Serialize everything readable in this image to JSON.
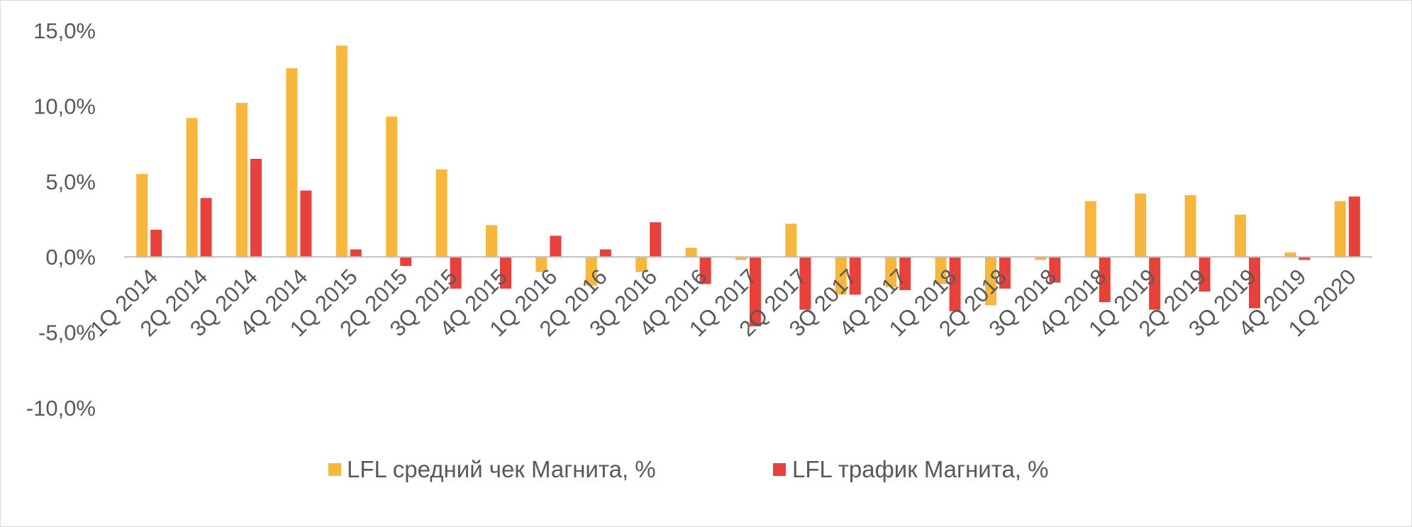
{
  "chart_data": {
    "type": "bar",
    "title": "",
    "xlabel": "",
    "ylabel": "",
    "ylim": [
      -10,
      15
    ],
    "y_ticks": [
      15,
      10,
      5,
      0,
      -5,
      -10
    ],
    "y_tick_labels": [
      "15,0%",
      "10,0%",
      "5,0%",
      "0,0%",
      "-5,0%",
      "-10,0%"
    ],
    "grid": false,
    "legend_position": "bottom",
    "categories": [
      "1Q 2014",
      "2Q 2014",
      "3Q 2014",
      "4Q 2014",
      "1Q 2015",
      "2Q 2015",
      "3Q 2015",
      "4Q 2015",
      "1Q 2016",
      "2Q 2016",
      "3Q 2016",
      "4Q 2016",
      "1Q 2017",
      "2Q 2017",
      "3Q 2017",
      "4Q 2017",
      "1Q 2018",
      "2Q 2018",
      "3Q 2018",
      "4Q 2018",
      "1Q 2019",
      "2Q 2019",
      "3Q 2019",
      "4Q 2019",
      "1Q 2020"
    ],
    "series": [
      {
        "name": "LFL средний чек Магнита, %",
        "color": "#f6b73c",
        "values": [
          5.5,
          9.2,
          10.2,
          12.5,
          14.0,
          9.3,
          5.8,
          2.1,
          -1.0,
          -1.9,
          -1.0,
          0.6,
          -0.2,
          2.2,
          -2.5,
          -2.0,
          -1.8,
          -3.2,
          -0.2,
          3.7,
          4.2,
          4.1,
          2.8,
          0.3,
          3.7
        ]
      },
      {
        "name": "LFL трафик Магнита, %",
        "color": "#e8413c",
        "values": [
          1.8,
          3.9,
          6.5,
          4.4,
          0.5,
          -0.6,
          -2.1,
          -2.1,
          1.4,
          0.5,
          2.3,
          -1.8,
          -4.6,
          -3.5,
          -2.5,
          -2.2,
          -3.6,
          -2.1,
          -1.7,
          -3.0,
          -3.5,
          -2.3,
          -3.4,
          -0.2,
          4.0
        ]
      }
    ]
  }
}
